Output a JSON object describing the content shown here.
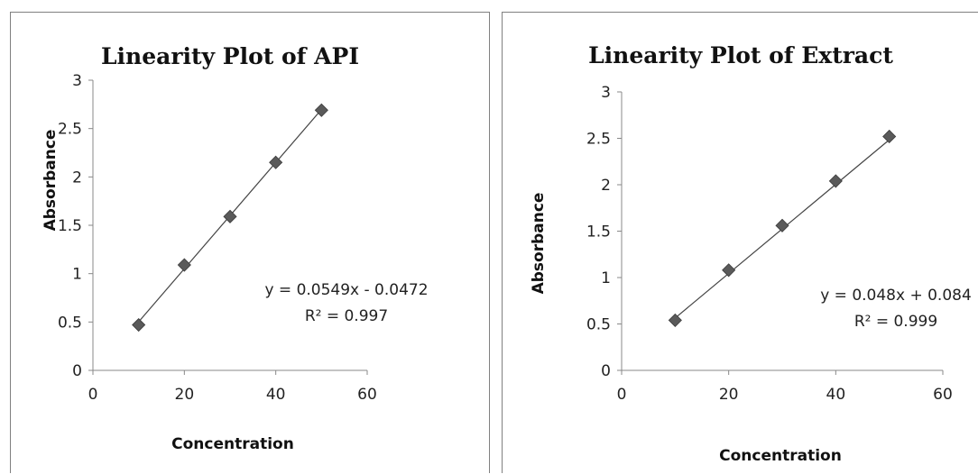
{
  "chart_data": [
    {
      "type": "scatter",
      "title": "Linearity Plot of API",
      "xlabel": "Concentration",
      "ylabel": "Absorbance",
      "xlim": [
        0,
        60
      ],
      "ylim": [
        0,
        3
      ],
      "xticks": [
        "0",
        "20",
        "40",
        "60"
      ],
      "yticks": [
        "0",
        "0.5",
        "1",
        "1.5",
        "2",
        "2.5",
        "3"
      ],
      "grid": false,
      "marker_color": "#5a5a5a",
      "trendline": {
        "slope": 0.0549,
        "intercept": -0.0472
      },
      "equation": "y = 0.0549x - 0.0472",
      "r_squared": "R² = 0.997",
      "points": [
        {
          "x": 10,
          "y": 0.47
        },
        {
          "x": 20,
          "y": 1.09
        },
        {
          "x": 30,
          "y": 1.59
        },
        {
          "x": 40,
          "y": 2.15
        },
        {
          "x": 50,
          "y": 2.69
        }
      ]
    },
    {
      "type": "scatter",
      "title": "Linearity Plot of Extract",
      "xlabel": "Concentration",
      "ylabel": "Absorbance",
      "xlim": [
        0,
        60
      ],
      "ylim": [
        0,
        3
      ],
      "xticks": [
        "0",
        "20",
        "40",
        "60"
      ],
      "yticks": [
        "0",
        "0.5",
        "1",
        "1.5",
        "2",
        "2.5",
        "3"
      ],
      "grid": false,
      "marker_color": "#5a5a5a",
      "trendline": {
        "slope": 0.048,
        "intercept": 0.084
      },
      "equation": "y = 0.048x + 0.084",
      "r_squared": "R² = 0.999",
      "points": [
        {
          "x": 10,
          "y": 0.54
        },
        {
          "x": 20,
          "y": 1.08
        },
        {
          "x": 30,
          "y": 1.56
        },
        {
          "x": 40,
          "y": 2.04
        },
        {
          "x": 50,
          "y": 2.52
        }
      ]
    }
  ]
}
